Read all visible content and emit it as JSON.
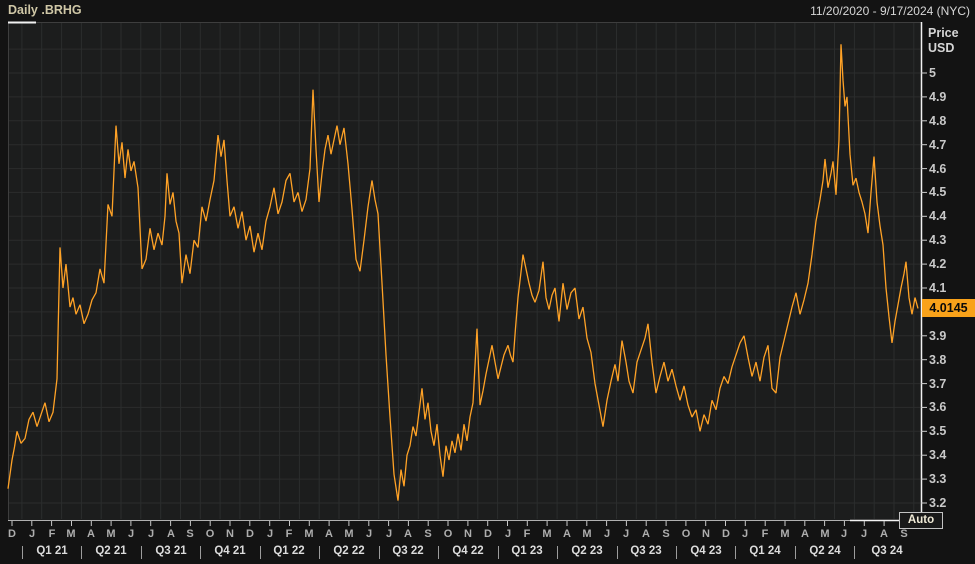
{
  "header": {
    "title": "Daily .BRHG",
    "date_range": "11/20/2020 - 9/17/2024 (NYC)"
  },
  "y_axis": {
    "title_line1": "Price",
    "title_line2": "USD",
    "ticks": [
      {
        "label": "5",
        "value": 5.0
      },
      {
        "label": "4.9",
        "value": 4.9
      },
      {
        "label": "4.8",
        "value": 4.8
      },
      {
        "label": "4.7",
        "value": 4.7
      },
      {
        "label": "4.6",
        "value": 4.6
      },
      {
        "label": "4.5",
        "value": 4.5
      },
      {
        "label": "4.4",
        "value": 4.4
      },
      {
        "label": "4.3",
        "value": 4.3
      },
      {
        "label": "4.2",
        "value": 4.2
      },
      {
        "label": "4.1",
        "value": 4.1
      },
      {
        "label": "3.9",
        "value": 3.9
      },
      {
        "label": "3.8",
        "value": 3.8
      },
      {
        "label": "3.7",
        "value": 3.7
      },
      {
        "label": "3.6",
        "value": 3.6
      },
      {
        "label": "3.5",
        "value": 3.5
      },
      {
        "label": "3.4",
        "value": 3.4
      },
      {
        "label": "3.3",
        "value": 3.3
      },
      {
        "label": "3.2",
        "value": 3.2
      }
    ]
  },
  "price_flag": {
    "label": "4.0145",
    "value": 4.0145,
    "bg": "#f9a21a",
    "fg": "#0a0a0a"
  },
  "auto_button": {
    "label": "Auto"
  },
  "x_axis": {
    "months": [
      "D",
      "J",
      "F",
      "M",
      "A",
      "M",
      "J",
      "J",
      "A",
      "S",
      "O",
      "N",
      "D",
      "J",
      "F",
      "M",
      "A",
      "M",
      "J",
      "J",
      "A",
      "S",
      "O",
      "N",
      "D",
      "J",
      "F",
      "M",
      "A",
      "M",
      "J",
      "J",
      "A",
      "S",
      "O",
      "N",
      "D",
      "J",
      "F",
      "M",
      "A",
      "M",
      "J",
      "J",
      "A",
      "S"
    ],
    "quarters": [
      "Q1 21",
      "Q2 21",
      "Q3 21",
      "Q4 21",
      "Q1 22",
      "Q2 22",
      "Q3 22",
      "Q4 22",
      "Q1 23",
      "Q2 23",
      "Q3 23",
      "Q4 23",
      "Q1 24",
      "Q2 24",
      "Q3 24"
    ]
  },
  "chart_data": {
    "type": "line",
    "title": "Daily .BRHG",
    "ylabel": "Price USD",
    "ylim": [
      3.2,
      5.0
    ],
    "x_start": "11/20/2020",
    "x_end": "9/17/2024",
    "last_price": 4.0145,
    "grid": "monthly vertical, 0.1 USD horizontal",
    "legend": "none",
    "series": [
      {
        "name": ".BRHG",
        "color": "#ffa226",
        "x_unit": "px (8=11/20/2020, 920=9/17/2024)",
        "points": [
          [
            8,
            3.26
          ],
          [
            12,
            3.38
          ],
          [
            17,
            3.5
          ],
          [
            21,
            3.45
          ],
          [
            25,
            3.47
          ],
          [
            29,
            3.55
          ],
          [
            33,
            3.58
          ],
          [
            37,
            3.52
          ],
          [
            41,
            3.57
          ],
          [
            45,
            3.62
          ],
          [
            49,
            3.54
          ],
          [
            53,
            3.58
          ],
          [
            57,
            3.72
          ],
          [
            60,
            4.27
          ],
          [
            63,
            4.1
          ],
          [
            66,
            4.2
          ],
          [
            70,
            4.02
          ],
          [
            73,
            4.06
          ],
          [
            76,
            3.99
          ],
          [
            80,
            4.03
          ],
          [
            84,
            3.95
          ],
          [
            88,
            3.99
          ],
          [
            92,
            4.05
          ],
          [
            96,
            4.08
          ],
          [
            100,
            4.18
          ],
          [
            104,
            4.12
          ],
          [
            108,
            4.45
          ],
          [
            112,
            4.4
          ],
          [
            116,
            4.78
          ],
          [
            119,
            4.62
          ],
          [
            122,
            4.71
          ],
          [
            125,
            4.56
          ],
          [
            128,
            4.68
          ],
          [
            131,
            4.59
          ],
          [
            134,
            4.63
          ],
          [
            138,
            4.52
          ],
          [
            142,
            4.18
          ],
          [
            146,
            4.22
          ],
          [
            150,
            4.35
          ],
          [
            154,
            4.26
          ],
          [
            158,
            4.33
          ],
          [
            162,
            4.28
          ],
          [
            165,
            4.4
          ],
          [
            167,
            4.58
          ],
          [
            170,
            4.45
          ],
          [
            173,
            4.5
          ],
          [
            176,
            4.38
          ],
          [
            179,
            4.33
          ],
          [
            182,
            4.12
          ],
          [
            186,
            4.24
          ],
          [
            190,
            4.16
          ],
          [
            194,
            4.3
          ],
          [
            198,
            4.27
          ],
          [
            202,
            4.44
          ],
          [
            206,
            4.38
          ],
          [
            210,
            4.47
          ],
          [
            214,
            4.55
          ],
          [
            218,
            4.74
          ],
          [
            221,
            4.65
          ],
          [
            224,
            4.72
          ],
          [
            227,
            4.55
          ],
          [
            230,
            4.4
          ],
          [
            234,
            4.44
          ],
          [
            238,
            4.35
          ],
          [
            242,
            4.42
          ],
          [
            246,
            4.3
          ],
          [
            250,
            4.36
          ],
          [
            254,
            4.25
          ],
          [
            258,
            4.33
          ],
          [
            262,
            4.26
          ],
          [
            266,
            4.38
          ],
          [
            270,
            4.44
          ],
          [
            274,
            4.52
          ],
          [
            278,
            4.41
          ],
          [
            282,
            4.46
          ],
          [
            286,
            4.55
          ],
          [
            290,
            4.58
          ],
          [
            294,
            4.46
          ],
          [
            298,
            4.5
          ],
          [
            302,
            4.42
          ],
          [
            306,
            4.47
          ],
          [
            310,
            4.6
          ],
          [
            313,
            4.93
          ],
          [
            316,
            4.68
          ],
          [
            319,
            4.46
          ],
          [
            322,
            4.58
          ],
          [
            325,
            4.68
          ],
          [
            328,
            4.74
          ],
          [
            331,
            4.66
          ],
          [
            334,
            4.72
          ],
          [
            337,
            4.78
          ],
          [
            340,
            4.7
          ],
          [
            344,
            4.77
          ],
          [
            348,
            4.62
          ],
          [
            352,
            4.43
          ],
          [
            356,
            4.22
          ],
          [
            360,
            4.17
          ],
          [
            364,
            4.3
          ],
          [
            368,
            4.44
          ],
          [
            372,
            4.55
          ],
          [
            375,
            4.47
          ],
          [
            378,
            4.41
          ],
          [
            382,
            4.12
          ],
          [
            386,
            3.82
          ],
          [
            390,
            3.56
          ],
          [
            394,
            3.32
          ],
          [
            398,
            3.21
          ],
          [
            401,
            3.34
          ],
          [
            404,
            3.27
          ],
          [
            407,
            3.4
          ],
          [
            410,
            3.44
          ],
          [
            413,
            3.52
          ],
          [
            416,
            3.48
          ],
          [
            419,
            3.58
          ],
          [
            422,
            3.68
          ],
          [
            425,
            3.55
          ],
          [
            428,
            3.62
          ],
          [
            431,
            3.5
          ],
          [
            434,
            3.44
          ],
          [
            437,
            3.53
          ],
          [
            440,
            3.4
          ],
          [
            443,
            3.31
          ],
          [
            446,
            3.44
          ],
          [
            449,
            3.38
          ],
          [
            452,
            3.46
          ],
          [
            455,
            3.41
          ],
          [
            458,
            3.49
          ],
          [
            461,
            3.42
          ],
          [
            464,
            3.53
          ],
          [
            467,
            3.46
          ],
          [
            470,
            3.56
          ],
          [
            473,
            3.62
          ],
          [
            477,
            3.93
          ],
          [
            480,
            3.61
          ],
          [
            483,
            3.67
          ],
          [
            486,
            3.74
          ],
          [
            489,
            3.8
          ],
          [
            492,
            3.86
          ],
          [
            495,
            3.79
          ],
          [
            498,
            3.72
          ],
          [
            501,
            3.77
          ],
          [
            504,
            3.82
          ],
          [
            508,
            3.86
          ],
          [
            513,
            3.79
          ],
          [
            518,
            4.06
          ],
          [
            523,
            4.24
          ],
          [
            526,
            4.18
          ],
          [
            529,
            4.12
          ],
          [
            532,
            4.07
          ],
          [
            535,
            4.04
          ],
          [
            539,
            4.09
          ],
          [
            543,
            4.21
          ],
          [
            546,
            4.06
          ],
          [
            549,
            4.01
          ],
          [
            552,
            4.07
          ],
          [
            555,
            4.1
          ],
          [
            559,
            3.96
          ],
          [
            563,
            4.12
          ],
          [
            567,
            4.01
          ],
          [
            571,
            4.08
          ],
          [
            575,
            4.1
          ],
          [
            579,
            3.97
          ],
          [
            583,
            4.02
          ],
          [
            587,
            3.89
          ],
          [
            591,
            3.83
          ],
          [
            595,
            3.7
          ],
          [
            599,
            3.61
          ],
          [
            603,
            3.52
          ],
          [
            607,
            3.63
          ],
          [
            611,
            3.71
          ],
          [
            615,
            3.78
          ],
          [
            618,
            3.71
          ],
          [
            622,
            3.88
          ],
          [
            626,
            3.79
          ],
          [
            629,
            3.71
          ],
          [
            633,
            3.66
          ],
          [
            637,
            3.79
          ],
          [
            641,
            3.84
          ],
          [
            645,
            3.89
          ],
          [
            648,
            3.95
          ],
          [
            652,
            3.79
          ],
          [
            656,
            3.66
          ],
          [
            660,
            3.73
          ],
          [
            664,
            3.79
          ],
          [
            668,
            3.71
          ],
          [
            672,
            3.76
          ],
          [
            676,
            3.69
          ],
          [
            680,
            3.63
          ],
          [
            684,
            3.69
          ],
          [
            688,
            3.61
          ],
          [
            692,
            3.56
          ],
          [
            696,
            3.59
          ],
          [
            700,
            3.5
          ],
          [
            704,
            3.57
          ],
          [
            708,
            3.53
          ],
          [
            712,
            3.63
          ],
          [
            716,
            3.59
          ],
          [
            720,
            3.68
          ],
          [
            724,
            3.73
          ],
          [
            728,
            3.7
          ],
          [
            732,
            3.77
          ],
          [
            736,
            3.82
          ],
          [
            740,
            3.87
          ],
          [
            744,
            3.9
          ],
          [
            748,
            3.81
          ],
          [
            752,
            3.73
          ],
          [
            756,
            3.79
          ],
          [
            760,
            3.71
          ],
          [
            764,
            3.81
          ],
          [
            768,
            3.86
          ],
          [
            772,
            3.68
          ],
          [
            776,
            3.66
          ],
          [
            780,
            3.81
          ],
          [
            784,
            3.88
          ],
          [
            788,
            3.95
          ],
          [
            792,
            4.02
          ],
          [
            796,
            4.08
          ],
          [
            800,
            3.99
          ],
          [
            804,
            4.05
          ],
          [
            808,
            4.12
          ],
          [
            812,
            4.24
          ],
          [
            816,
            4.38
          ],
          [
            820,
            4.47
          ],
          [
            823,
            4.55
          ],
          [
            825,
            4.64
          ],
          [
            828,
            4.52
          ],
          [
            831,
            4.58
          ],
          [
            833,
            4.63
          ],
          [
            836,
            4.49
          ],
          [
            839,
            4.72
          ],
          [
            841,
            5.12
          ],
          [
            843,
            4.97
          ],
          [
            845,
            4.86
          ],
          [
            847,
            4.9
          ],
          [
            850,
            4.66
          ],
          [
            853,
            4.53
          ],
          [
            856,
            4.56
          ],
          [
            859,
            4.5
          ],
          [
            862,
            4.46
          ],
          [
            865,
            4.41
          ],
          [
            868,
            4.33
          ],
          [
            871,
            4.5
          ],
          [
            874,
            4.65
          ],
          [
            877,
            4.46
          ],
          [
            880,
            4.36
          ],
          [
            883,
            4.28
          ],
          [
            886,
            4.1
          ],
          [
            889,
            3.98
          ],
          [
            892,
            3.87
          ],
          [
            895,
            3.96
          ],
          [
            898,
            4.03
          ],
          [
            901,
            4.1
          ],
          [
            904,
            4.16
          ],
          [
            906,
            4.21
          ],
          [
            909,
            4.06
          ],
          [
            912,
            3.99
          ],
          [
            915,
            4.06
          ],
          [
            918,
            4.0145
          ]
        ]
      }
    ]
  },
  "colors": {
    "plot_bg": "#1c1d1d",
    "grid": "#2b2d2d",
    "line": "#ffa226",
    "axis_white": "#f2f2f2",
    "axis_gray": "#3e3e3e",
    "bottom_axis": "#b0b0b0"
  }
}
